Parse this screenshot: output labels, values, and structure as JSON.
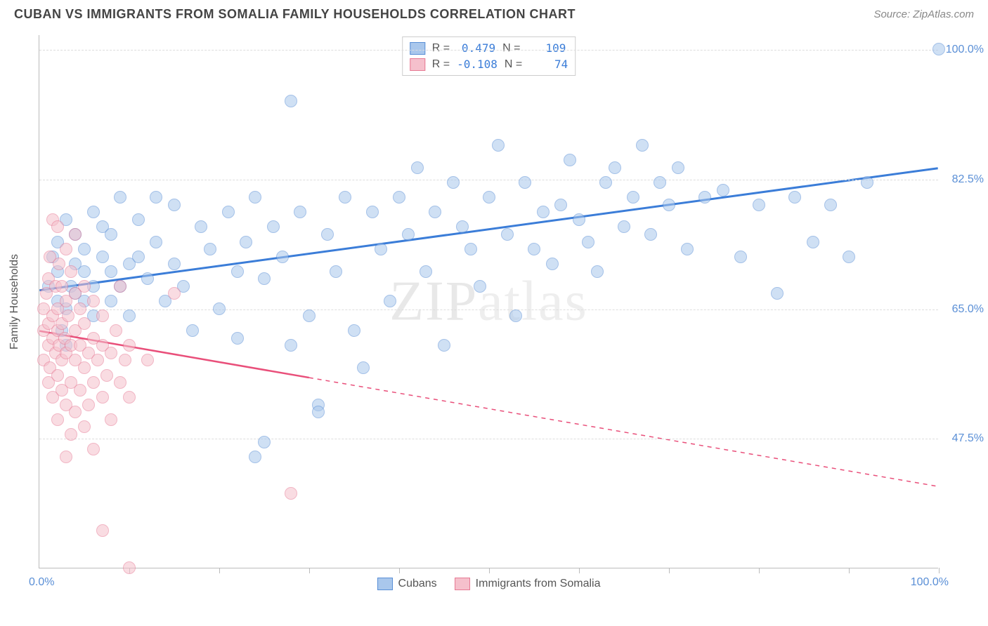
{
  "title": "CUBAN VS IMMIGRANTS FROM SOMALIA FAMILY HOUSEHOLDS CORRELATION CHART",
  "source": "Source: ZipAtlas.com",
  "chart": {
    "type": "scatter",
    "y_axis_title": "Family Households",
    "xlim": [
      0,
      100
    ],
    "ylim": [
      30,
      102
    ],
    "x_axis_min_label": "0.0%",
    "x_axis_max_label": "100.0%",
    "y_ticks": [
      {
        "value": 47.5,
        "label": "47.5%",
        "color": "#5a8fd6"
      },
      {
        "value": 65.0,
        "label": "65.0%",
        "color": "#5a8fd6"
      },
      {
        "value": 82.5,
        "label": "82.5%",
        "color": "#5a8fd6"
      },
      {
        "value": 100.0,
        "label": "100.0%",
        "color": "#5a8fd6"
      }
    ],
    "x_ticks": [
      10,
      20,
      30,
      40,
      50,
      60,
      70,
      80,
      90,
      100
    ],
    "x_axis_label_color": "#5a8fd6",
    "background_color": "#ffffff",
    "grid_color": "#dddddd",
    "watermark": "ZIPatlas",
    "marker_radius": 9,
    "marker_opacity": 0.55,
    "series": [
      {
        "name": "Cubans",
        "color_fill": "#a9c7ec",
        "color_stroke": "#5a8fd6",
        "R": "0.479",
        "N": "109",
        "R_color": "#3b7dd8",
        "trend": {
          "x1": 0,
          "y1": 67.5,
          "x2": 100,
          "y2": 84.0,
          "x_solid_end": 100,
          "stroke": "#3b7dd8",
          "width": 3
        },
        "points": [
          [
            1,
            68
          ],
          [
            1.5,
            72
          ],
          [
            2,
            70
          ],
          [
            2,
            74
          ],
          [
            2,
            66
          ],
          [
            2.5,
            62
          ],
          [
            3,
            77
          ],
          [
            3,
            65
          ],
          [
            3,
            60
          ],
          [
            3.5,
            68
          ],
          [
            4,
            71
          ],
          [
            4,
            75
          ],
          [
            4,
            67
          ],
          [
            5,
            70
          ],
          [
            5,
            73
          ],
          [
            5,
            66
          ],
          [
            6,
            68
          ],
          [
            6,
            78
          ],
          [
            6,
            64
          ],
          [
            7,
            72
          ],
          [
            7,
            76
          ],
          [
            8,
            70
          ],
          [
            8,
            66
          ],
          [
            8,
            75
          ],
          [
            9,
            68
          ],
          [
            9,
            80
          ],
          [
            10,
            71
          ],
          [
            10,
            64
          ],
          [
            11,
            77
          ],
          [
            11,
            72
          ],
          [
            12,
            69
          ],
          [
            13,
            80
          ],
          [
            13,
            74
          ],
          [
            14,
            66
          ],
          [
            15,
            79
          ],
          [
            15,
            71
          ],
          [
            16,
            68
          ],
          [
            17,
            62
          ],
          [
            18,
            76
          ],
          [
            19,
            73
          ],
          [
            20,
            65
          ],
          [
            21,
            78
          ],
          [
            22,
            70
          ],
          [
            22,
            61
          ],
          [
            23,
            74
          ],
          [
            24,
            45
          ],
          [
            24,
            80
          ],
          [
            25,
            47
          ],
          [
            25,
            69
          ],
          [
            26,
            76
          ],
          [
            27,
            72
          ],
          [
            28,
            60
          ],
          [
            28,
            93
          ],
          [
            29,
            78
          ],
          [
            30,
            64
          ],
          [
            31,
            52
          ],
          [
            31,
            51
          ],
          [
            32,
            75
          ],
          [
            33,
            70
          ],
          [
            34,
            80
          ],
          [
            35,
            62
          ],
          [
            36,
            57
          ],
          [
            37,
            78
          ],
          [
            38,
            73
          ],
          [
            39,
            66
          ],
          [
            40,
            80
          ],
          [
            41,
            75
          ],
          [
            42,
            84
          ],
          [
            43,
            70
          ],
          [
            44,
            78
          ],
          [
            45,
            60
          ],
          [
            46,
            82
          ],
          [
            47,
            76
          ],
          [
            48,
            73
          ],
          [
            49,
            68
          ],
          [
            50,
            80
          ],
          [
            51,
            87
          ],
          [
            52,
            75
          ],
          [
            53,
            64
          ],
          [
            54,
            82
          ],
          [
            55,
            73
          ],
          [
            56,
            78
          ],
          [
            57,
            71
          ],
          [
            58,
            79
          ],
          [
            59,
            85
          ],
          [
            60,
            77
          ],
          [
            61,
            74
          ],
          [
            62,
            70
          ],
          [
            63,
            82
          ],
          [
            64,
            84
          ],
          [
            65,
            76
          ],
          [
            66,
            80
          ],
          [
            67,
            87
          ],
          [
            68,
            75
          ],
          [
            69,
            82
          ],
          [
            70,
            79
          ],
          [
            71,
            84
          ],
          [
            72,
            73
          ],
          [
            74,
            80
          ],
          [
            76,
            81
          ],
          [
            78,
            72
          ],
          [
            80,
            79
          ],
          [
            82,
            67
          ],
          [
            84,
            80
          ],
          [
            86,
            74
          ],
          [
            88,
            79
          ],
          [
            90,
            72
          ],
          [
            92,
            82
          ],
          [
            100,
            100
          ]
        ]
      },
      {
        "name": "Immigrants from Somalia",
        "color_fill": "#f5c0cc",
        "color_stroke": "#e77a94",
        "R": "-0.108",
        "N": "74",
        "R_color": "#3b7dd8",
        "trend": {
          "x1": 0,
          "y1": 62.0,
          "x2": 100,
          "y2": 41.0,
          "x_solid_end": 30,
          "stroke": "#e94f7a",
          "width": 2.5
        },
        "points": [
          [
            0.5,
            62
          ],
          [
            0.5,
            65
          ],
          [
            0.5,
            58
          ],
          [
            0.8,
            67
          ],
          [
            1,
            60
          ],
          [
            1,
            63
          ],
          [
            1,
            55
          ],
          [
            1,
            69
          ],
          [
            1.2,
            57
          ],
          [
            1.2,
            72
          ],
          [
            1.5,
            61
          ],
          [
            1.5,
            64
          ],
          [
            1.5,
            53
          ],
          [
            1.5,
            77
          ],
          [
            1.8,
            59
          ],
          [
            1.8,
            68
          ],
          [
            2,
            62
          ],
          [
            2,
            56
          ],
          [
            2,
            65
          ],
          [
            2,
            50
          ],
          [
            2,
            76
          ],
          [
            2.2,
            60
          ],
          [
            2.2,
            71
          ],
          [
            2.5,
            58
          ],
          [
            2.5,
            63
          ],
          [
            2.5,
            54
          ],
          [
            2.5,
            68
          ],
          [
            2.8,
            61
          ],
          [
            3,
            59
          ],
          [
            3,
            52
          ],
          [
            3,
            66
          ],
          [
            3,
            73
          ],
          [
            3,
            45
          ],
          [
            3.2,
            64
          ],
          [
            3.5,
            60
          ],
          [
            3.5,
            55
          ],
          [
            3.5,
            70
          ],
          [
            3.5,
            48
          ],
          [
            4,
            62
          ],
          [
            4,
            58
          ],
          [
            4,
            67
          ],
          [
            4,
            51
          ],
          [
            4,
            75
          ],
          [
            4.5,
            60
          ],
          [
            4.5,
            54
          ],
          [
            4.5,
            65
          ],
          [
            5,
            57
          ],
          [
            5,
            63
          ],
          [
            5,
            49
          ],
          [
            5,
            68
          ],
          [
            5.5,
            59
          ],
          [
            5.5,
            52
          ],
          [
            6,
            61
          ],
          [
            6,
            55
          ],
          [
            6,
            66
          ],
          [
            6,
            46
          ],
          [
            6.5,
            58
          ],
          [
            7,
            60
          ],
          [
            7,
            53
          ],
          [
            7,
            64
          ],
          [
            7,
            35
          ],
          [
            7.5,
            56
          ],
          [
            8,
            59
          ],
          [
            8,
            50
          ],
          [
            8.5,
            62
          ],
          [
            9,
            55
          ],
          [
            9,
            68
          ],
          [
            9.5,
            58
          ],
          [
            10,
            53
          ],
          [
            10,
            60
          ],
          [
            10,
            30
          ],
          [
            12,
            58
          ],
          [
            15,
            67
          ],
          [
            28,
            40
          ]
        ]
      }
    ],
    "bottom_legend": [
      {
        "label": "Cubans",
        "fill": "#a9c7ec",
        "stroke": "#5a8fd6"
      },
      {
        "label": "Immigrants from Somalia",
        "fill": "#f5c0cc",
        "stroke": "#e77a94"
      }
    ]
  }
}
